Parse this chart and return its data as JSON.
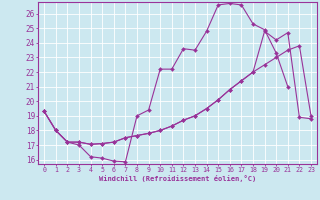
{
  "title": "",
  "xlabel": "Windchill (Refroidissement éolien,°C)",
  "bg_color": "#cce8f0",
  "line_color": "#993399",
  "grid_color": "#ffffff",
  "xlim": [
    -0.5,
    23.5
  ],
  "ylim": [
    15.7,
    26.8
  ],
  "xticks": [
    0,
    1,
    2,
    3,
    4,
    5,
    6,
    7,
    8,
    9,
    10,
    11,
    12,
    13,
    14,
    15,
    16,
    17,
    18,
    19,
    20,
    21,
    22,
    23
  ],
  "yticks": [
    16,
    17,
    18,
    19,
    20,
    21,
    22,
    23,
    24,
    25,
    26
  ],
  "line1_x": [
    0,
    1,
    2,
    3,
    4,
    5,
    6,
    7,
    8,
    9,
    10,
    11,
    12,
    13,
    14,
    15,
    16,
    17,
    18,
    19,
    20,
    21
  ],
  "line1_y": [
    19.3,
    18.0,
    17.2,
    17.0,
    16.2,
    16.1,
    15.9,
    15.85,
    19.0,
    19.4,
    22.2,
    22.2,
    23.6,
    23.5,
    24.8,
    26.6,
    26.7,
    26.6,
    25.3,
    24.9,
    23.3,
    21.0
  ],
  "line2_x": [
    0,
    1,
    2,
    3,
    4,
    5,
    6,
    7,
    8,
    9,
    10,
    11,
    12,
    13,
    14,
    15,
    16,
    17,
    18,
    19,
    20,
    21,
    22,
    23
  ],
  "line2_y": [
    19.3,
    18.0,
    17.2,
    17.2,
    17.05,
    17.1,
    17.2,
    17.5,
    17.65,
    17.8,
    18.0,
    18.3,
    18.7,
    19.0,
    19.5,
    20.1,
    20.8,
    21.4,
    22.0,
    22.5,
    23.0,
    23.5,
    23.8,
    19.0
  ],
  "line3_x": [
    0,
    1,
    2,
    3,
    4,
    5,
    6,
    7,
    8,
    9,
    10,
    11,
    12,
    13,
    14,
    15,
    16,
    17,
    18,
    19,
    20,
    21,
    22,
    23
  ],
  "line3_y": [
    19.3,
    18.0,
    17.2,
    17.2,
    17.05,
    17.1,
    17.2,
    17.5,
    17.65,
    17.8,
    18.0,
    18.3,
    18.7,
    19.0,
    19.5,
    20.1,
    20.8,
    21.4,
    22.0,
    24.8,
    24.2,
    24.7,
    18.9,
    18.8
  ]
}
